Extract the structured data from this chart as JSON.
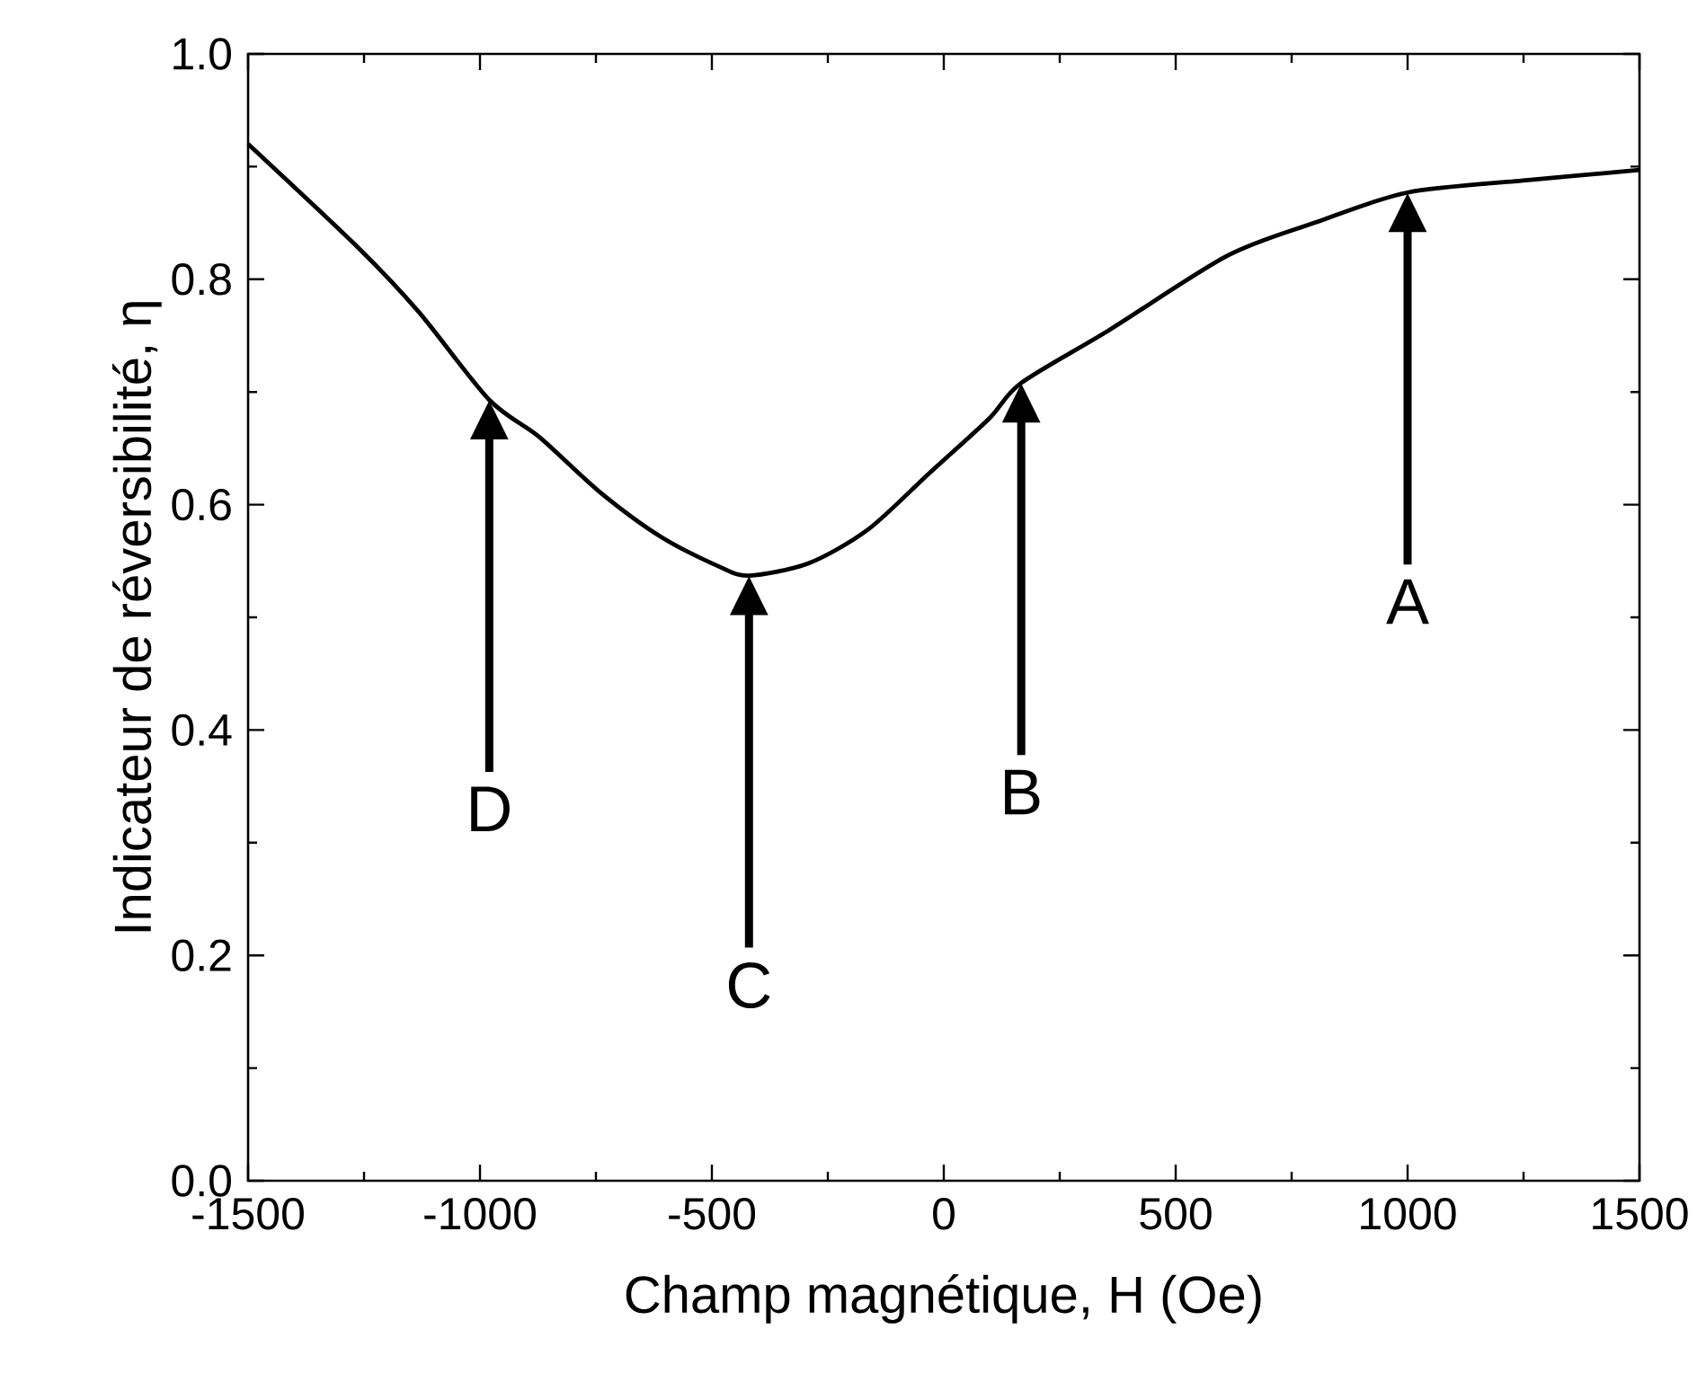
{
  "chart_data": {
    "type": "line",
    "xlabel": "Champ magnétique, H (Oe)",
    "ylabel": "Indicateur de réversibilité, η",
    "x": [
      -1500,
      -1260,
      -1132,
      -980,
      -872,
      -744,
      -612,
      -484,
      -420,
      -291,
      -163,
      -31,
      97,
      167,
      357,
      612,
      806,
      1000,
      1260,
      1500
    ],
    "series": [
      {
        "color": "#000000",
        "values": [
          0.92,
          0.827,
          0.771,
          0.693,
          0.66,
          0.612,
          0.572,
          0.545,
          0.537,
          0.548,
          0.578,
          0.628,
          0.676,
          0.708,
          0.755,
          0.821,
          0.851,
          0.877,
          0.888,
          0.897
        ]
      }
    ],
    "xlim": [
      -1500,
      1500
    ],
    "ylim": [
      0.0,
      1.0
    ],
    "xticks": [
      -1500,
      -1000,
      -500,
      0,
      500,
      1000,
      1500
    ],
    "yticks": [
      {
        "value": 0,
        "label": "0.0"
      },
      {
        "value": 0.2,
        "label": "0.2"
      },
      {
        "value": 0.4,
        "label": "0.4"
      },
      {
        "value": 0.6,
        "label": "0.6"
      },
      {
        "value": 0.8,
        "label": "0.8"
      },
      {
        "value": 1.0,
        "label": "1.0"
      }
    ],
    "annotations": [
      "A",
      "B",
      "C",
      "D"
    ],
    "grid": false,
    "legend": false,
    "marker": "none",
    "line_style": "solid"
  }
}
